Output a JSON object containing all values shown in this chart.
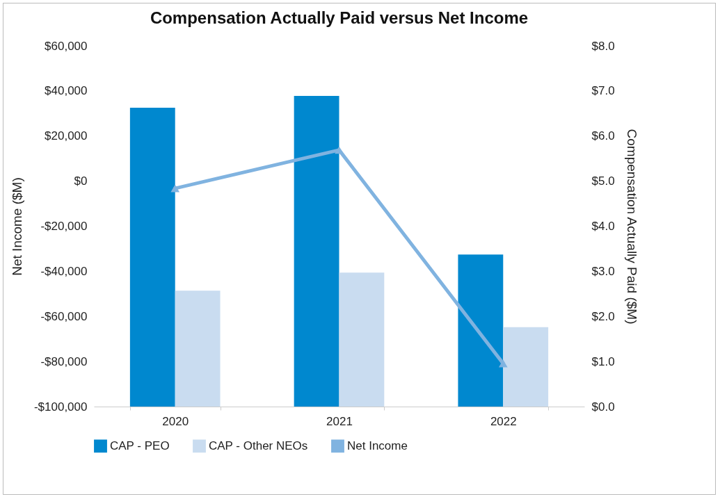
{
  "chart_data": {
    "type": "bar",
    "title": "Compensation Actually Paid versus Net Income",
    "ylabel": "Net Income ($M)",
    "y2label": "Compensation Actually Paid ($M)",
    "categories": [
      "2020",
      "2021",
      "2022"
    ],
    "series": [
      {
        "name": "CAP - PEO",
        "color": "#0088cf",
        "axis": "y2",
        "values": [
          6.63,
          6.89,
          3.37
        ]
      },
      {
        "name": "CAP - Other NEOs",
        "color": "#c9dcf0",
        "axis": "y2",
        "values": [
          2.57,
          2.97,
          1.76
        ]
      },
      {
        "name": "Net Income",
        "type": "line",
        "color": "#80b3e0",
        "marker": "triangle",
        "values": [
          -3200,
          13800,
          -80900
        ]
      }
    ],
    "ylim": [
      -100000,
      60000
    ],
    "yticks": [
      {
        "value": -100000,
        "label": "-$100,000"
      },
      {
        "value": -80000,
        "label": "-$80,000"
      },
      {
        "value": -60000,
        "label": "-$60,000"
      },
      {
        "value": -40000,
        "label": "-$40,000"
      },
      {
        "value": -20000,
        "label": "-$20,000"
      },
      {
        "value": 0,
        "label": "$0"
      },
      {
        "value": 20000,
        "label": "$20,000"
      },
      {
        "value": 40000,
        "label": "$40,000"
      },
      {
        "value": 60000,
        "label": "$60,000"
      }
    ],
    "y2lim": [
      0,
      8
    ],
    "y2ticks": [
      {
        "value": 0,
        "label": "$0.0"
      },
      {
        "value": 1,
        "label": "$1.0"
      },
      {
        "value": 2,
        "label": "$2.0"
      },
      {
        "value": 3,
        "label": "$3.0"
      },
      {
        "value": 4,
        "label": "$4.0"
      },
      {
        "value": 5,
        "label": "$5.0"
      },
      {
        "value": 6,
        "label": "$6.0"
      },
      {
        "value": 7,
        "label": "$7.0"
      },
      {
        "value": 8,
        "label": "$8.0"
      }
    ],
    "legend": "bottom",
    "grid": false
  }
}
